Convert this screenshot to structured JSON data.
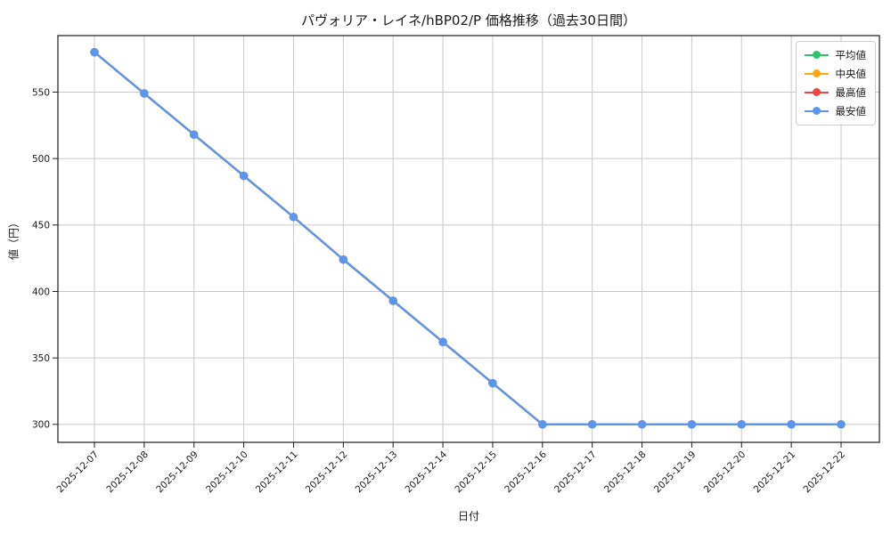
{
  "chart_data": {
    "type": "line",
    "title": "パヴォリア・レイネ/hBP02/P 価格推移（過去30日間）",
    "xlabel": "日付",
    "ylabel": "値（円）",
    "categories": [
      "2025-12-07",
      "2025-12-08",
      "2025-12-09",
      "2025-12-10",
      "2025-12-11",
      "2025-12-12",
      "2025-12-13",
      "2025-12-14",
      "2025-12-15",
      "2025-12-16",
      "2025-12-17",
      "2025-12-18",
      "2025-12-19",
      "2025-12-20",
      "2025-12-21",
      "2025-12-22"
    ],
    "series": [
      {
        "name": "平均値",
        "color": "#2ec46e",
        "values": [
          580,
          549,
          518,
          487,
          456,
          424,
          393,
          362,
          331,
          300,
          300,
          300,
          300,
          300,
          300,
          300
        ]
      },
      {
        "name": "中央値",
        "color": "#ffa514",
        "values": [
          580,
          549,
          518,
          487,
          456,
          424,
          393,
          362,
          331,
          300,
          300,
          300,
          300,
          300,
          300,
          300
        ]
      },
      {
        "name": "最高値",
        "color": "#ee4646",
        "values": [
          580,
          549,
          518,
          487,
          456,
          424,
          393,
          362,
          331,
          300,
          300,
          300,
          300,
          300,
          300,
          300
        ]
      },
      {
        "name": "最安値",
        "color": "#5a96f0",
        "values": [
          580,
          549,
          518,
          487,
          456,
          424,
          393,
          362,
          331,
          300,
          300,
          300,
          300,
          300,
          300,
          300
        ]
      }
    ],
    "yticks": [
      300,
      350,
      400,
      450,
      500,
      550
    ],
    "ylim": [
      286.5,
      592.5
    ],
    "grid": true,
    "legend_position": "upper right",
    "colors": {
      "grid": "#c8c8c8",
      "spine": "#1a1a1a",
      "text": "#1a1a1a"
    }
  }
}
